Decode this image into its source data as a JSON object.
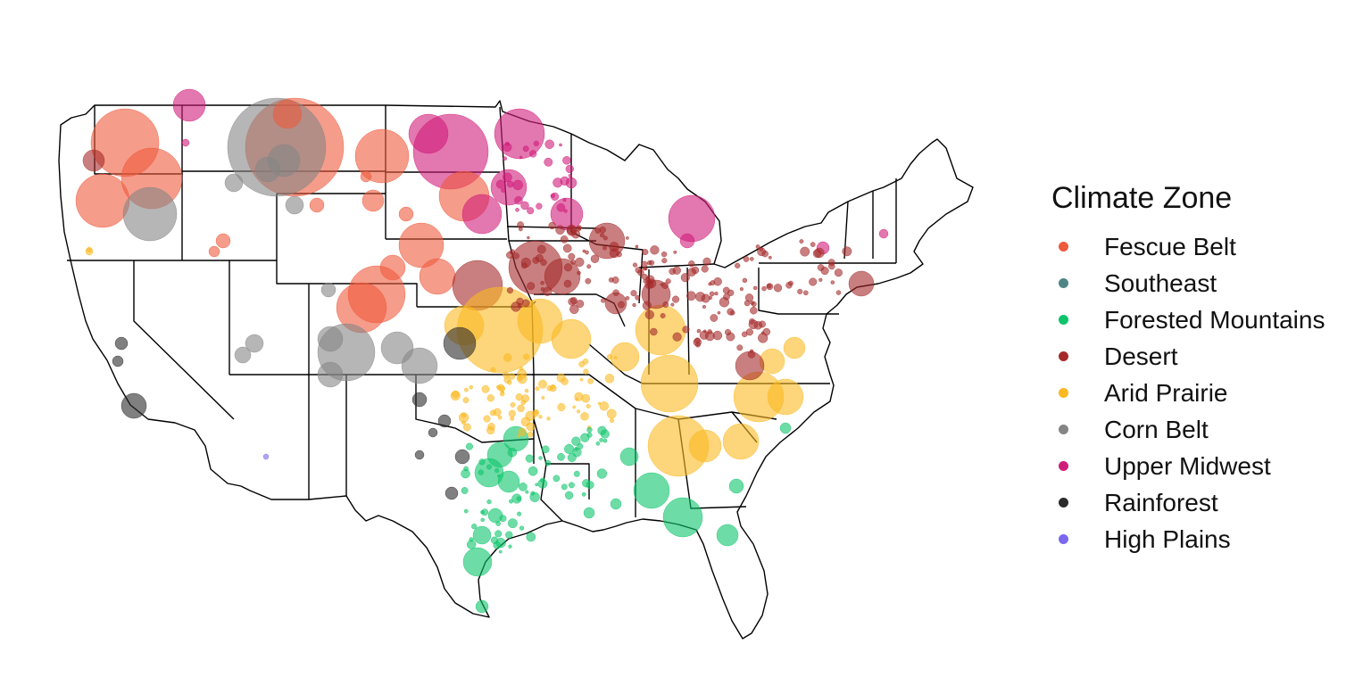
{
  "legend": {
    "title": "Climate Zone",
    "items": [
      {
        "label": "Fescue Belt",
        "color": "#EE5A3C"
      },
      {
        "label": "Southeast",
        "color": "#4E8585"
      },
      {
        "label": "Forested Mountains",
        "color": "#0DC46A"
      },
      {
        "label": "Desert",
        "color": "#A52A2A"
      },
      {
        "label": "Arid Prairie",
        "color": "#FBB921"
      },
      {
        "label": "Corn Belt",
        "color": "#858585"
      },
      {
        "label": "Upper Midwest",
        "color": "#D01C79"
      },
      {
        "label": "Rainforest",
        "color": "#2B2B2B"
      },
      {
        "label": "High Plains",
        "color": "#7B68EE"
      }
    ]
  }
}
